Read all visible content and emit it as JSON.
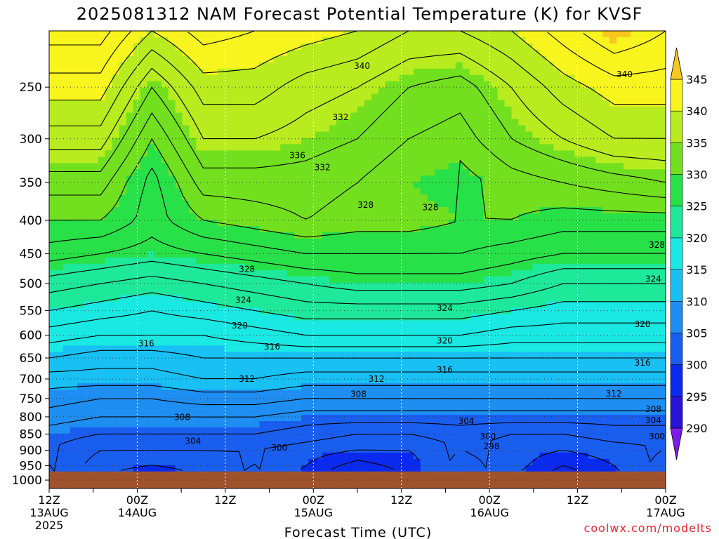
{
  "title": "2025081312 NAM Forecast Potential Temperature (K) for KVSF",
  "xlabel": "Forecast Time (UTC)",
  "credit": "coolwx.com/modelts",
  "chart_data": {
    "type": "heatmap",
    "title": "2025081312 NAM Forecast Potential Temperature (K) for KVSF",
    "xlabel": "Forecast Time (UTC)",
    "ylabel": "",
    "x_ticks": [
      {
        "hour": 0,
        "lines": [
          "12Z",
          "13AUG",
          "2025"
        ]
      },
      {
        "hour": 6,
        "lines": [
          "",
          ""
        ]
      },
      {
        "hour": 12,
        "lines": [
          "00Z",
          "14AUG"
        ]
      },
      {
        "hour": 18,
        "lines": [
          "",
          ""
        ]
      },
      {
        "hour": 24,
        "lines": [
          "12Z",
          ""
        ]
      },
      {
        "hour": 30,
        "lines": [
          "",
          ""
        ]
      },
      {
        "hour": 36,
        "lines": [
          "00Z",
          "15AUG"
        ]
      },
      {
        "hour": 42,
        "lines": [
          "",
          ""
        ]
      },
      {
        "hour": 48,
        "lines": [
          "12Z",
          ""
        ]
      },
      {
        "hour": 54,
        "lines": [
          "",
          ""
        ]
      },
      {
        "hour": 60,
        "lines": [
          "00Z",
          "16AUG"
        ]
      },
      {
        "hour": 66,
        "lines": [
          "",
          ""
        ]
      },
      {
        "hour": 72,
        "lines": [
          "12Z",
          ""
        ]
      },
      {
        "hour": 78,
        "lines": [
          "",
          ""
        ]
      },
      {
        "hour": 84,
        "lines": [
          "00Z",
          "17AUG"
        ]
      }
    ],
    "x_range_hours": [
      0,
      84
    ],
    "y_axis": {
      "scale": "log-pressure",
      "unit": "hPa",
      "inverted": true,
      "range": [
        1030,
        205
      ]
    },
    "y_ticks": [
      250,
      300,
      350,
      400,
      450,
      500,
      550,
      600,
      650,
      700,
      750,
      800,
      850,
      900,
      950,
      1000
    ],
    "ground_below_hpa": 970,
    "color_levels": [
      290,
      295,
      300,
      305,
      310,
      315,
      320,
      325,
      330,
      335,
      340,
      345
    ],
    "colorbar_labels": [
      "345",
      "340",
      "335",
      "330",
      "325",
      "320",
      "315",
      "310",
      "305",
      "300",
      "295",
      "290"
    ],
    "colors": [
      "#7c1ce6",
      "#2a12d8",
      "#0a2af0",
      "#1a5ef0",
      "#1e8ef2",
      "#18c0f4",
      "#1ae8e2",
      "#1ee89a",
      "#28e048",
      "#72e01e",
      "#b8ec1e",
      "#f8f41e",
      "#f8c81e"
    ],
    "ground_color": "#a0522d",
    "contour_interval_K": 2,
    "layers": [
      {
        "p": 1000,
        "theta": [
          305,
          300,
          297,
          300,
          303,
          299,
          294,
          298,
          304,
          300,
          296,
          299,
          304
        ]
      },
      {
        "p": 950,
        "theta": [
          304,
          301,
          300,
          301,
          302,
          300,
          297,
          299,
          303,
          301,
          298,
          300,
          303
        ]
      },
      {
        "p": 900,
        "theta": [
          304,
          302,
          302,
          302,
          302,
          301,
          300,
          300,
          302,
          301,
          300,
          301,
          302
        ]
      },
      {
        "p": 850,
        "theta": [
          305,
          304,
          304,
          304,
          304,
          303,
          302,
          302,
          303,
          302,
          302,
          303,
          303
        ]
      },
      {
        "p": 800,
        "theta": [
          307,
          306,
          306,
          306,
          306,
          305,
          305,
          305,
          305,
          305,
          305,
          305,
          305
        ]
      },
      {
        "p": 750,
        "theta": [
          309,
          308,
          308,
          309,
          309,
          308,
          308,
          308,
          308,
          308,
          308,
          308,
          308
        ]
      },
      {
        "p": 700,
        "theta": [
          311,
          311,
          311,
          312,
          312,
          311,
          311,
          311,
          311,
          311,
          311,
          311,
          311
        ]
      },
      {
        "p": 650,
        "theta": [
          314,
          313,
          313,
          314,
          314,
          314,
          314,
          314,
          314,
          314,
          314,
          314,
          314
        ]
      },
      {
        "p": 600,
        "theta": [
          317,
          316,
          316,
          316,
          317,
          318,
          318,
          318,
          318,
          317,
          317,
          317,
          317
        ]
      },
      {
        "p": 550,
        "theta": [
          320,
          319,
          318,
          319,
          320,
          321,
          321,
          321,
          321,
          320,
          319,
          319,
          319
        ]
      },
      {
        "p": 500,
        "theta": [
          323,
          322,
          321,
          322,
          323,
          324,
          325,
          325,
          325,
          324,
          322,
          322,
          322
        ]
      },
      {
        "p": 450,
        "theta": [
          327,
          326,
          325,
          326,
          327,
          328,
          328,
          328,
          328,
          327,
          326,
          326,
          326
        ]
      },
      {
        "p": 400,
        "theta": [
          330,
          330,
          327,
          330,
          331,
          332,
          331,
          331,
          330,
          330,
          329,
          329,
          329
        ]
      },
      {
        "p": 350,
        "theta": [
          333,
          333,
          327,
          333,
          333,
          333,
          332,
          330,
          329,
          331,
          332,
          333,
          334
        ]
      },
      {
        "p": 300,
        "theta": [
          337,
          337,
          330,
          336,
          336,
          335,
          334,
          332,
          331,
          334,
          336,
          338,
          338
        ]
      },
      {
        "p": 250,
        "theta": [
          341,
          341,
          334,
          339,
          339,
          337,
          336,
          334,
          333,
          336,
          339,
          341,
          341
        ]
      },
      {
        "p": 205,
        "theta": [
          345,
          345,
          340,
          343,
          342,
          341,
          340,
          338,
          338,
          340,
          343,
          346,
          344
        ]
      }
    ],
    "contour_labels": [
      {
        "hour": 43.5,
        "p": 232,
        "text": "340"
      },
      {
        "hour": 80.0,
        "p": 239,
        "text": "340"
      },
      {
        "hour": 40.5,
        "p": 278,
        "text": "332"
      },
      {
        "hour": 34.5,
        "p": 318,
        "text": "336"
      },
      {
        "hour": 38.0,
        "p": 332,
        "text": "332"
      },
      {
        "hour": 44.0,
        "p": 379,
        "text": "328"
      },
      {
        "hour": 53.0,
        "p": 382,
        "text": "328"
      },
      {
        "hour": 84.5,
        "p": 436,
        "text": "328"
      },
      {
        "hour": 27.5,
        "p": 475,
        "text": "328"
      },
      {
        "hour": 27.0,
        "p": 530,
        "text": "324"
      },
      {
        "hour": 84.0,
        "p": 492,
        "text": "324"
      },
      {
        "hour": 55.0,
        "p": 545,
        "text": "324"
      },
      {
        "hour": 26.5,
        "p": 580,
        "text": "320"
      },
      {
        "hour": 55.0,
        "p": 612,
        "text": "320"
      },
      {
        "hour": 82.5,
        "p": 577,
        "text": "320"
      },
      {
        "hour": 13.5,
        "p": 618,
        "text": "316"
      },
      {
        "hour": 31.0,
        "p": 625,
        "text": "316"
      },
      {
        "hour": 55.0,
        "p": 678,
        "text": "316"
      },
      {
        "hour": 82.5,
        "p": 661,
        "text": "316"
      },
      {
        "hour": 27.5,
        "p": 700,
        "text": "312"
      },
      {
        "hour": 45.5,
        "p": 700,
        "text": "312"
      },
      {
        "hour": 78.5,
        "p": 737,
        "text": "312"
      },
      {
        "hour": 43.0,
        "p": 738,
        "text": "308"
      },
      {
        "hour": 84.0,
        "p": 779,
        "text": "308"
      },
      {
        "hour": 18.5,
        "p": 801,
        "text": "308"
      },
      {
        "hour": 84.0,
        "p": 810,
        "text": "304"
      },
      {
        "hour": 58.0,
        "p": 812,
        "text": "304"
      },
      {
        "hour": 61.0,
        "p": 858,
        "text": "300"
      },
      {
        "hour": 84.5,
        "p": 858,
        "text": "300"
      },
      {
        "hour": 20.0,
        "p": 872,
        "text": "304"
      },
      {
        "hour": 32.0,
        "p": 892,
        "text": "300"
      },
      {
        "hour": 61.5,
        "p": 888,
        "text": "298"
      }
    ],
    "grid": true,
    "legend": "right colorbar"
  }
}
